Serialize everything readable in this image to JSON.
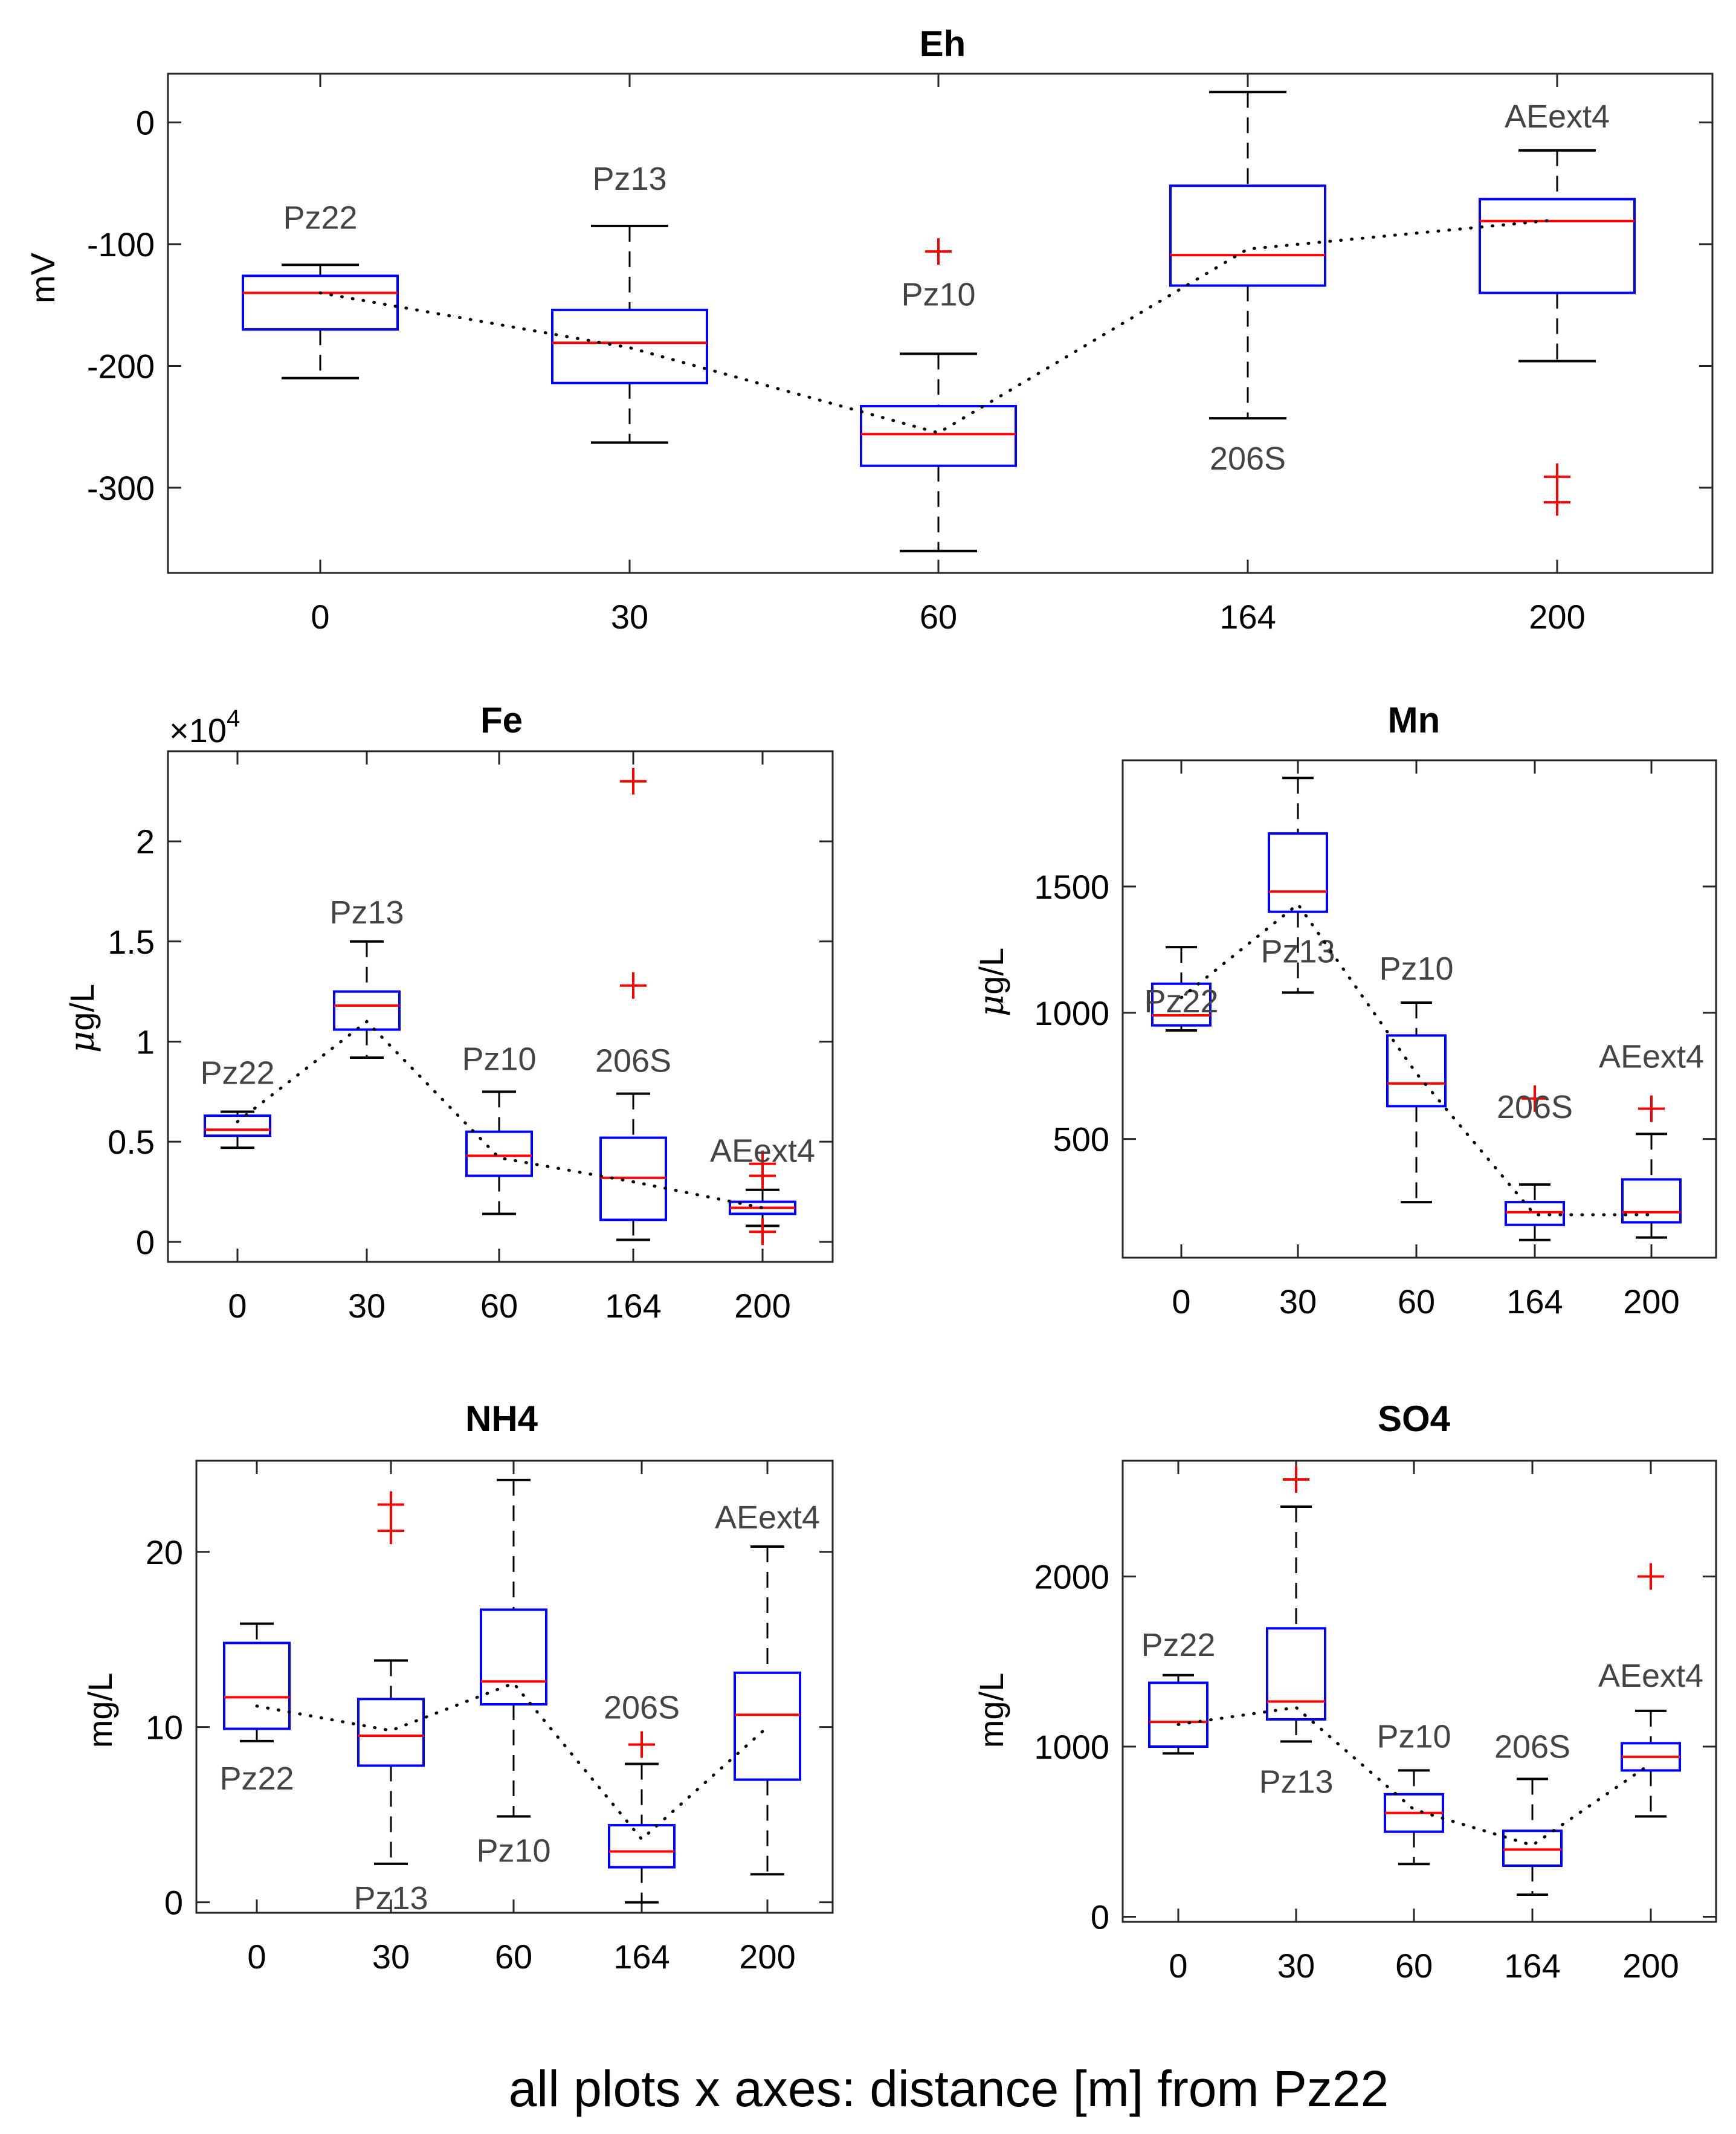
{
  "caption": "all plots x axes: distance [m] from Pz22",
  "chart_data": [
    {
      "type": "box",
      "title": "Eh",
      "ylabel": "mV",
      "xlabel": "",
      "y_label_prefix": "",
      "y_label_unit": "mV",
      "categories": [
        "0",
        "30",
        "60",
        "164",
        "200"
      ],
      "yticks": [
        0,
        -100,
        -200,
        -300
      ],
      "ytick_labels": [
        "0",
        "-100",
        "-200",
        "-300"
      ],
      "ylim": [
        -370,
        40
      ],
      "exponent_label": "",
      "sites": [
        "Pz22",
        "Pz13",
        "Pz10",
        "206S",
        "AEext4"
      ],
      "boxes": [
        {
          "lower_whisker": -210,
          "q1": -170,
          "median": -140,
          "q3": -126,
          "upper_whisker": -117,
          "mean": -140,
          "outliers": []
        },
        {
          "lower_whisker": -263,
          "q1": -214,
          "median": -181,
          "q3": -154,
          "upper_whisker": -85,
          "mean": -185,
          "outliers": []
        },
        {
          "lower_whisker": -352,
          "q1": -282,
          "median": -256,
          "q3": -233,
          "upper_whisker": -190,
          "mean": -255,
          "outliers": [
            -106
          ]
        },
        {
          "lower_whisker": -243,
          "q1": -134,
          "median": -109,
          "q3": -52,
          "upper_whisker": 25,
          "mean": -104,
          "outliers": []
        },
        {
          "lower_whisker": -196,
          "q1": -140,
          "median": -81,
          "q3": -63,
          "upper_whisker": -23,
          "mean": -80,
          "outliers": [
            -291,
            -312
          ]
        }
      ]
    },
    {
      "type": "box",
      "title": "Fe",
      "ylabel": "μg/L",
      "y_label_prefix": "μ",
      "y_label_unit": "g/L",
      "xlabel": "",
      "categories": [
        "0",
        "30",
        "60",
        "164",
        "200"
      ],
      "yticks": [
        0,
        0.5,
        1,
        1.5,
        2
      ],
      "ytick_labels": [
        "0",
        "0.5",
        "1",
        "1.5",
        "2"
      ],
      "ylim": [
        -0.1,
        2.45
      ],
      "exponent_label": "×10",
      "exponent_power": "4",
      "sites": [
        "Pz22",
        "Pz13",
        "Pz10",
        "206S",
        "AEext4"
      ],
      "boxes": [
        {
          "lower_whisker": 0.47,
          "q1": 0.53,
          "median": 0.56,
          "q3": 0.63,
          "upper_whisker": 0.65,
          "mean": 0.6,
          "outliers": []
        },
        {
          "lower_whisker": 0.92,
          "q1": 1.06,
          "median": 1.18,
          "q3": 1.25,
          "upper_whisker": 1.5,
          "mean": 1.1,
          "outliers": []
        },
        {
          "lower_whisker": 0.14,
          "q1": 0.33,
          "median": 0.43,
          "q3": 0.55,
          "upper_whisker": 0.75,
          "mean": 0.42,
          "outliers": []
        },
        {
          "lower_whisker": 0.01,
          "q1": 0.11,
          "median": 0.32,
          "q3": 0.52,
          "upper_whisker": 0.74,
          "mean": 0.3,
          "outliers": [
            2.3,
            1.28
          ]
        },
        {
          "lower_whisker": 0.08,
          "q1": 0.14,
          "median": 0.17,
          "q3": 0.2,
          "upper_whisker": 0.26,
          "mean": 0.17,
          "outliers": [
            0.39,
            0.33,
            0.05
          ]
        }
      ]
    },
    {
      "type": "box",
      "title": "Mn",
      "ylabel": "μg/L",
      "y_label_prefix": "μ",
      "y_label_unit": "g/L",
      "xlabel": "",
      "categories": [
        "0",
        "30",
        "60",
        "164",
        "200"
      ],
      "yticks": [
        500,
        1000,
        1500
      ],
      "ytick_labels": [
        "500",
        "1000",
        "1500"
      ],
      "ylim": [
        30,
        2000
      ],
      "exponent_label": "",
      "sites": [
        "Pz22",
        "Pz13",
        "Pz10",
        "206S",
        "AEext4"
      ],
      "boxes": [
        {
          "lower_whisker": 930,
          "q1": 950,
          "median": 990,
          "q3": 1115,
          "upper_whisker": 1260,
          "mean": 1060,
          "outliers": []
        },
        {
          "lower_whisker": 1080,
          "q1": 1400,
          "median": 1480,
          "q3": 1710,
          "upper_whisker": 1930,
          "mean": 1430,
          "outliers": []
        },
        {
          "lower_whisker": 250,
          "q1": 630,
          "median": 720,
          "q3": 910,
          "upper_whisker": 1040,
          "mean": 760,
          "outliers": []
        },
        {
          "lower_whisker": 100,
          "q1": 160,
          "median": 210,
          "q3": 250,
          "upper_whisker": 320,
          "mean": 200,
          "outliers": [
            660
          ]
        },
        {
          "lower_whisker": 110,
          "q1": 170,
          "median": 210,
          "q3": 340,
          "upper_whisker": 520,
          "mean": 200,
          "outliers": [
            620
          ]
        }
      ]
    },
    {
      "type": "box",
      "title": "NH4",
      "ylabel": "mg/L",
      "y_label_prefix": "",
      "y_label_unit": "mg/L",
      "xlabel": "",
      "categories": [
        "0",
        "30",
        "60",
        "164",
        "200"
      ],
      "yticks": [
        0,
        10,
        20
      ],
      "ytick_labels": [
        "0",
        "10",
        "20"
      ],
      "ylim": [
        -0.6,
        25.2
      ],
      "exponent_label": "",
      "sites": [
        "Pz22",
        "Pz13",
        "Pz10",
        "206S",
        "AEext4"
      ],
      "boxes": [
        {
          "lower_whisker": 9.2,
          "q1": 9.9,
          "median": 11.7,
          "q3": 14.8,
          "upper_whisker": 15.9,
          "mean": 11.2,
          "outliers": []
        },
        {
          "lower_whisker": 2.2,
          "q1": 7.8,
          "median": 9.5,
          "q3": 11.6,
          "upper_whisker": 13.8,
          "mean": 9.8,
          "outliers": [
            22.7,
            21.2
          ]
        },
        {
          "lower_whisker": 4.9,
          "q1": 11.3,
          "median": 12.6,
          "q3": 16.7,
          "upper_whisker": 24.1,
          "mean": 12.5,
          "outliers": []
        },
        {
          "lower_whisker": 0,
          "q1": 2.0,
          "median": 2.9,
          "q3": 4.4,
          "upper_whisker": 7.9,
          "mean": 3.6,
          "outliers": [
            9.0
          ]
        },
        {
          "lower_whisker": 1.6,
          "q1": 7.0,
          "median": 10.7,
          "q3": 13.1,
          "upper_whisker": 20.3,
          "mean": 10.0,
          "outliers": []
        }
      ]
    },
    {
      "type": "box",
      "title": "SO4",
      "ylabel": "mg/L",
      "y_label_prefix": "",
      "y_label_unit": "mg/L",
      "xlabel": "",
      "categories": [
        "0",
        "30",
        "60",
        "164",
        "200"
      ],
      "yticks": [
        0,
        1000,
        2000
      ],
      "ytick_labels": [
        "0",
        "1000",
        "2000"
      ],
      "ylim": [
        -30,
        2680
      ],
      "exponent_label": "",
      "sites": [
        "Pz22",
        "Pz13",
        "Pz10",
        "206S",
        "AEext4"
      ],
      "boxes": [
        {
          "lower_whisker": 960,
          "q1": 1000,
          "median": 1145,
          "q3": 1375,
          "upper_whisker": 1420,
          "mean": 1130,
          "outliers": []
        },
        {
          "lower_whisker": 1030,
          "q1": 1160,
          "median": 1265,
          "q3": 1695,
          "upper_whisker": 2410,
          "mean": 1230,
          "outliers": [
            2570
          ]
        },
        {
          "lower_whisker": 310,
          "q1": 500,
          "median": 610,
          "q3": 720,
          "upper_whisker": 860,
          "mean": 630,
          "outliers": []
        },
        {
          "lower_whisker": 130,
          "q1": 300,
          "median": 395,
          "q3": 505,
          "upper_whisker": 810,
          "mean": 420,
          "outliers": []
        },
        {
          "lower_whisker": 590,
          "q1": 860,
          "median": 940,
          "q3": 1020,
          "upper_whisker": 1210,
          "mean": 900,
          "outliers": [
            2000
          ]
        }
      ]
    }
  ]
}
